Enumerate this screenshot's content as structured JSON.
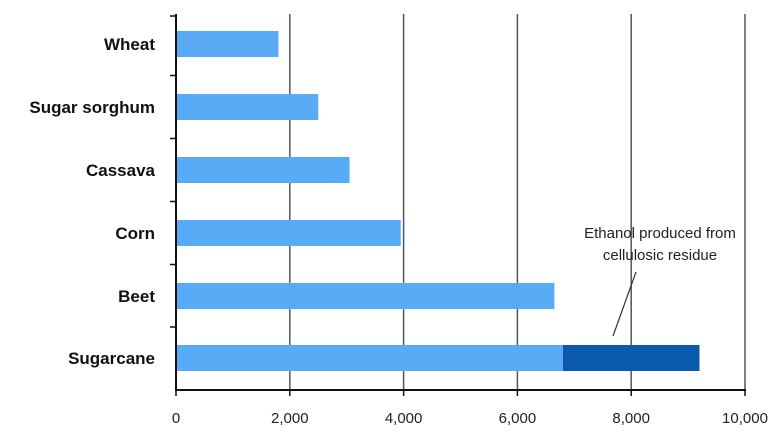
{
  "chart_data": {
    "type": "bar",
    "orientation": "horizontal",
    "stacked": true,
    "categories": [
      "Wheat",
      "Sugar sorghum",
      "Cassava",
      "Corn",
      "Beet",
      "Sugarcane"
    ],
    "series": [
      {
        "values": [
          1800,
          2500,
          3050,
          3950,
          6650,
          6800
        ],
        "color": "#5aabf6"
      },
      {
        "values": [
          0,
          0,
          0,
          0,
          0,
          2400
        ],
        "color": "#0a5bb0"
      }
    ],
    "xlim": [
      0,
      10000
    ],
    "xticks": [
      0,
      2000,
      4000,
      6000,
      8000,
      10000
    ],
    "xtick_labels": [
      "0",
      "2,000",
      "4,000",
      "6,000",
      "8,000",
      "10,000"
    ],
    "grid": "vertical",
    "annotation": {
      "lines": [
        "Ethanol produced from",
        "cellulosic residue"
      ],
      "target_category": "Sugarcane"
    },
    "title": "",
    "xlabel": "",
    "ylabel": ""
  }
}
